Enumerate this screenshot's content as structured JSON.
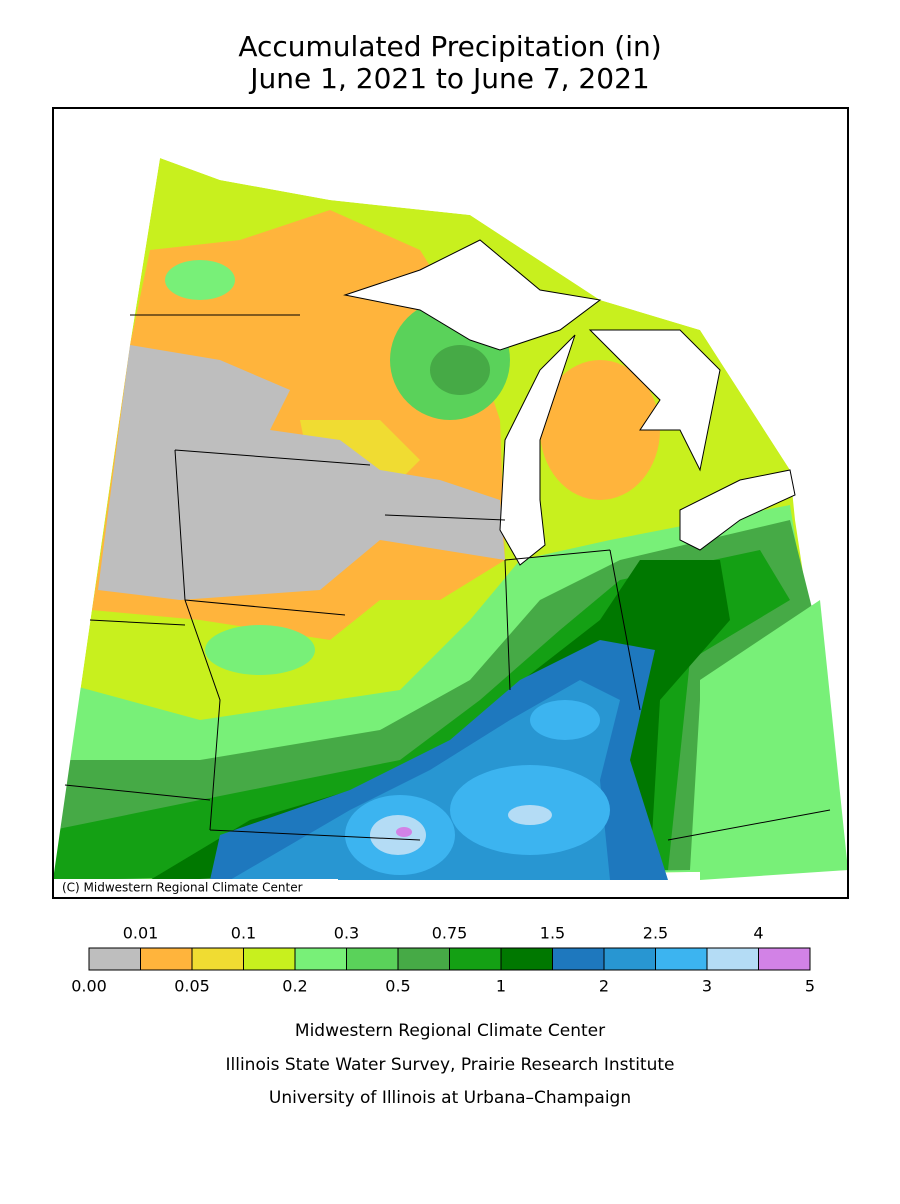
{
  "title": [
    "Accumulated Precipitation (in)",
    "June 1, 2021 to June 7, 2021"
  ],
  "copyright": "(C) Midwestern Regional Climate Center",
  "legend": {
    "colors": [
      "#bebebe",
      "#ffb43c",
      "#f0dc32",
      "#c8f01e",
      "#78f078",
      "#5ad25a",
      "#46aa46",
      "#14a014",
      "#007800",
      "#1e78be",
      "#2896d2",
      "#3cb4f0",
      "#b4dcf5",
      "#d282e6"
    ],
    "labels": [
      "0.00",
      "0.01",
      "0.05",
      "0.1",
      "0.2",
      "0.3",
      "0.5",
      "0.75",
      "1",
      "1.5",
      "2",
      "2.5",
      "3",
      "4",
      "5"
    ]
  },
  "footer": [
    "Midwestern Regional Climate Center",
    "Illinois State Water Survey, Prairie Research Institute",
    "University of Illinois at Urbana–Champaign"
  ]
}
